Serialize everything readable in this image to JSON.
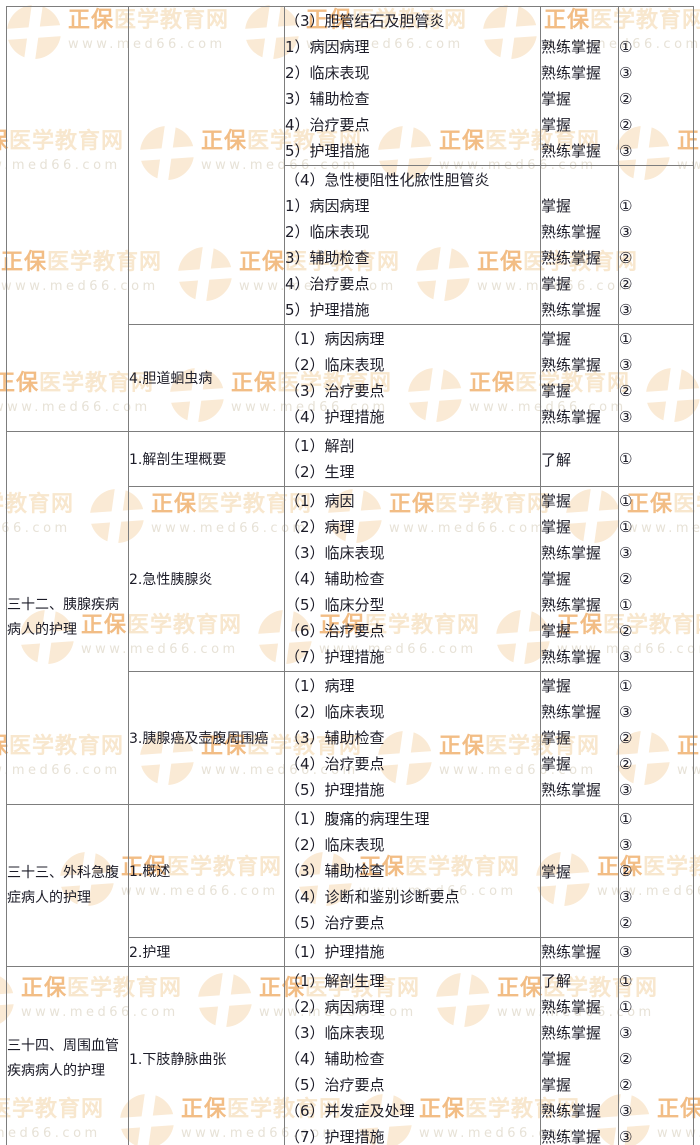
{
  "watermark": {
    "brand_strong": "正保",
    "brand_light": "医学教育网",
    "url": "www.med66.com",
    "colors": {
      "brand_strong": "#f2bd85",
      "brand_light": "#f8e7ce",
      "url": "#e7e2d7",
      "logo_circle": "#faead5"
    }
  },
  "table": {
    "columns": [
      "chapter",
      "section",
      "items",
      "mastery_level",
      "exam_grade"
    ],
    "mastery_levels": [
      "了解",
      "掌握",
      "熟练掌握"
    ],
    "grade_symbols": [
      "①",
      "②",
      "③"
    ],
    "groups": [
      {
        "chapter": "",
        "chapter_span": 3,
        "section": "",
        "section_span": 2,
        "lines": [
          {
            "item": "（3）胆管结石及胆管炎",
            "mastery": "",
            "num": ""
          },
          {
            "item": "1）病因病理",
            "mastery": "熟练掌握",
            "num": "①"
          },
          {
            "item": "2）临床表现",
            "mastery": "熟练掌握",
            "num": "③"
          },
          {
            "item": "3）辅助检查",
            "mastery": "掌握",
            "num": "②"
          },
          {
            "item": "4）治疗要点",
            "mastery": "掌握",
            "num": "②"
          },
          {
            "item": "5）护理措施",
            "mastery": "熟练掌握",
            "num": "③"
          }
        ]
      },
      {
        "lines": [
          {
            "item": "（4）急性梗阻性化脓性胆管炎",
            "mastery": "",
            "num": ""
          },
          {
            "item": "1）病因病理",
            "mastery": "掌握",
            "num": "①"
          },
          {
            "item": "2）临床表现",
            "mastery": "熟练掌握",
            "num": "③"
          },
          {
            "item": "3）辅助检查",
            "mastery": "熟练掌握",
            "num": "②"
          },
          {
            "item": "4）治疗要点",
            "mastery": "掌握",
            "num": "②"
          },
          {
            "item": "5）护理措施",
            "mastery": "熟练掌握",
            "num": "③"
          }
        ]
      },
      {
        "section": "4.胆道蛔虫病",
        "lines": [
          {
            "item": "（1）病因病理",
            "mastery": "掌握",
            "num": "①"
          },
          {
            "item": "（2）临床表现",
            "mastery": "熟练掌握",
            "num": "③"
          },
          {
            "item": "（3）治疗要点",
            "mastery": "掌握",
            "num": "②"
          },
          {
            "item": "（4）护理措施",
            "mastery": "熟练掌握",
            "num": "③"
          }
        ]
      },
      {
        "chapter": "三十二、胰腺疾病病人的护理",
        "chapter_span": 3,
        "section": "1.解剖生理概要",
        "mastery_center": "了解",
        "num_center": "①",
        "lines": [
          {
            "item": "（1）解剖"
          },
          {
            "item": "（2）生理"
          }
        ]
      },
      {
        "section": "2.急性胰腺炎",
        "lines": [
          {
            "item": "（1）病因",
            "mastery": "掌握",
            "num": "①"
          },
          {
            "item": "（2）病理",
            "mastery": "掌握",
            "num": "①"
          },
          {
            "item": "（3）临床表现",
            "mastery": "熟练掌握",
            "num": "③"
          },
          {
            "item": "（4）辅助检查",
            "mastery": "掌握",
            "num": "②"
          },
          {
            "item": "（5）临床分型",
            "mastery": "熟练掌握",
            "num": "①"
          },
          {
            "item": "（6）治疗要点",
            "mastery": "掌握",
            "num": "②"
          },
          {
            "item": "（7）护理措施",
            "mastery": "熟练掌握",
            "num": "③"
          }
        ]
      },
      {
        "section": "3.胰腺癌及壶腹周围癌",
        "lines": [
          {
            "item": "（1）病理",
            "mastery": "掌握",
            "num": "①"
          },
          {
            "item": "（2）临床表现",
            "mastery": "熟练掌握",
            "num": "③"
          },
          {
            "item": "（3）辅助检查",
            "mastery": "掌握",
            "num": "②"
          },
          {
            "item": "（4）治疗要点",
            "mastery": "掌握",
            "num": "②"
          },
          {
            "item": "（5）护理措施",
            "mastery": "熟练掌握",
            "num": "③"
          }
        ]
      },
      {
        "chapter": "三十三、外科急腹症病人的护理",
        "chapter_span": 2,
        "section": "1.概述",
        "mastery_center": "掌握",
        "lines": [
          {
            "item": "（1）腹痛的病理生理",
            "num": "①"
          },
          {
            "item": "（2）临床表现",
            "num": "③"
          },
          {
            "item": "（3）辅助检查",
            "num": "②"
          },
          {
            "item": "（4）诊断和鉴别诊断要点",
            "num": "③"
          },
          {
            "item": "（5）治疗要点",
            "num": "②"
          }
        ]
      },
      {
        "section": "2.护理",
        "lines": [
          {
            "item": "（1）护理措施",
            "mastery": "熟练掌握",
            "num": "③"
          }
        ]
      },
      {
        "chapter": "三十四、周围血管疾病病人的护理",
        "chapter_span": 1,
        "section": "1.下肢静脉曲张",
        "lines": [
          {
            "item": "（1）解剖生理",
            "mastery": "了解",
            "num": "①"
          },
          {
            "item": "（2）病因病理",
            "mastery": "熟练掌握",
            "num": "①"
          },
          {
            "item": "（3）临床表现",
            "mastery": "熟练掌握",
            "num": "③"
          },
          {
            "item": "（4）辅助检查",
            "mastery": "掌握",
            "num": "②"
          },
          {
            "item": "（5）治疗要点",
            "mastery": "掌握",
            "num": "②"
          },
          {
            "item": "（6）并发症及处理",
            "mastery": "熟练掌握",
            "num": "③"
          },
          {
            "item": "（7）护理措施",
            "mastery": "熟练掌握",
            "num": "③"
          }
        ]
      }
    ]
  }
}
